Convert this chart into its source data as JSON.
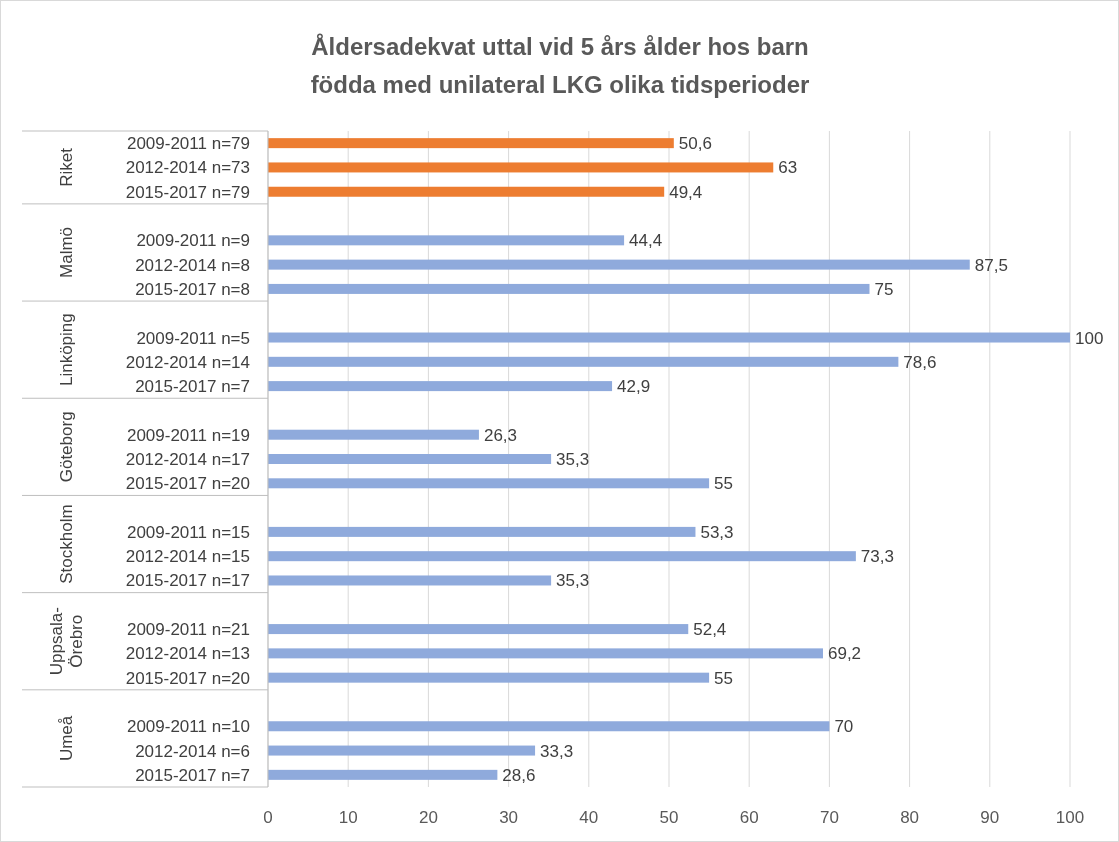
{
  "chart_data": {
    "type": "bar",
    "orientation": "horizontal",
    "title": "Åldersadekvat uttal vid 5 års ålder hos barn födda med unilateral LKG olika tidsperioder",
    "categories": [
      "2009-2011 n=79",
      "2012-2014 n=73",
      "2015-2017 n=79",
      "2009-2011 n=9",
      "2012-2014 n=8",
      "2015-2017 n=8",
      "2009-2011 n=5",
      "2012-2014 n=14",
      "2015-2017 n=7",
      "2009-2011 n=19",
      "2012-2014 n=17",
      "2015-2017 n=20",
      "2009-2011 n=15",
      "2012-2014 n=15",
      "2015-2017 n=17",
      "2009-2011 n=21",
      "2012-2014 n=13",
      "2015-2017 n=20",
      "2009-2011 n=10",
      "2012-2014 n=6",
      "2015-2017 n=7"
    ],
    "values": [
      50.6,
      63,
      49.4,
      44.4,
      87.5,
      75,
      100,
      78.6,
      42.9,
      26.3,
      35.3,
      55,
      53.3,
      73.3,
      35.3,
      52.4,
      69.2,
      55,
      70,
      33.3,
      28.6
    ],
    "value_labels": [
      "50,6",
      "63",
      "49,4",
      "44,4",
      "87,5",
      "75",
      "100",
      "78,6",
      "42,9",
      "26,3",
      "35,3",
      "55",
      "53,3",
      "73,3",
      "35,3",
      "52,4",
      "69,2",
      "55",
      "70",
      "33,3",
      "28,6"
    ],
    "colors": [
      "#ed7d31",
      "#ed7d31",
      "#ed7d31",
      "#8faadc",
      "#8faadc",
      "#8faadc",
      "#8faadc",
      "#8faadc",
      "#8faadc",
      "#8faadc",
      "#8faadc",
      "#8faadc",
      "#8faadc",
      "#8faadc",
      "#8faadc",
      "#8faadc",
      "#8faadc",
      "#8faadc",
      "#8faadc",
      "#8faadc",
      "#8faadc"
    ],
    "annotations": [
      "Riket",
      "Malmö",
      "Linköping",
      "Göteborg",
      "Stockholm",
      "Uppsala-\nÖrebro",
      "Umeå"
    ],
    "xlim": [
      0,
      100
    ],
    "xticks": [
      0,
      10,
      20,
      30,
      40,
      50,
      60,
      70,
      80,
      90,
      100
    ],
    "grid": "x"
  }
}
